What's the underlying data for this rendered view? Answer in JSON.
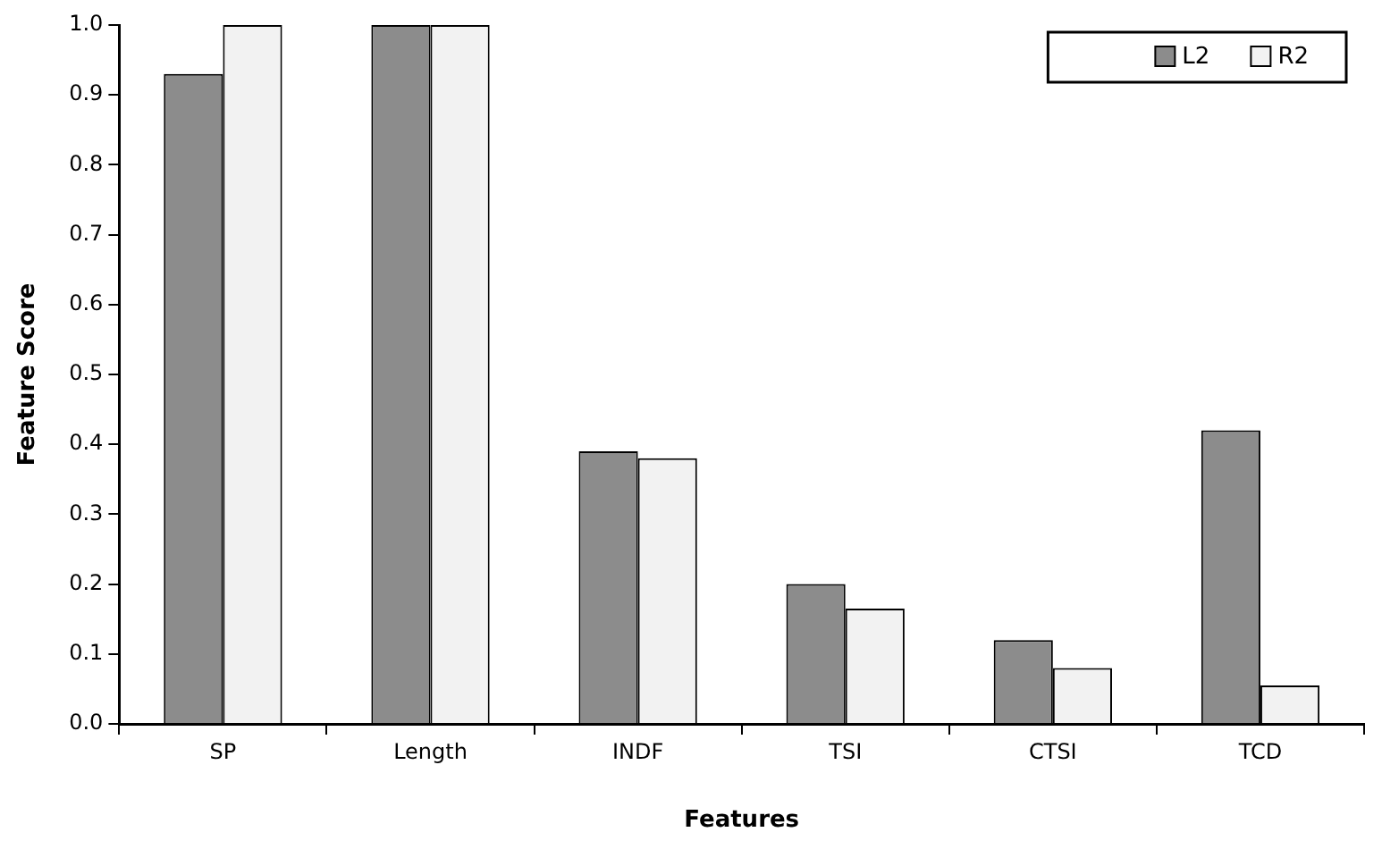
{
  "chart_data": {
    "type": "bar",
    "xlabel": "Features",
    "ylabel": "Feature Score",
    "categories": [
      "SP",
      "Length",
      "INDF",
      "TSI",
      "CTSI",
      "TCD"
    ],
    "series": [
      {
        "name": "L2",
        "color": "#8c8c8c",
        "values": [
          0.93,
          1.0,
          0.39,
          0.2,
          0.12,
          0.42
        ]
      },
      {
        "name": "R2",
        "color": "#f2f2f2",
        "values": [
          1.0,
          1.0,
          0.38,
          0.165,
          0.08,
          0.055
        ]
      }
    ],
    "ylim": [
      0,
      1
    ],
    "yticks": [
      {
        "value": 0,
        "label": "0.0"
      },
      0.1,
      0.2,
      0.3,
      0.4,
      0.5,
      0.6,
      0.7,
      0.8,
      0.9,
      {
        "value": 1,
        "label": "1.0"
      }
    ],
    "grid": false,
    "legend": "top right"
  }
}
